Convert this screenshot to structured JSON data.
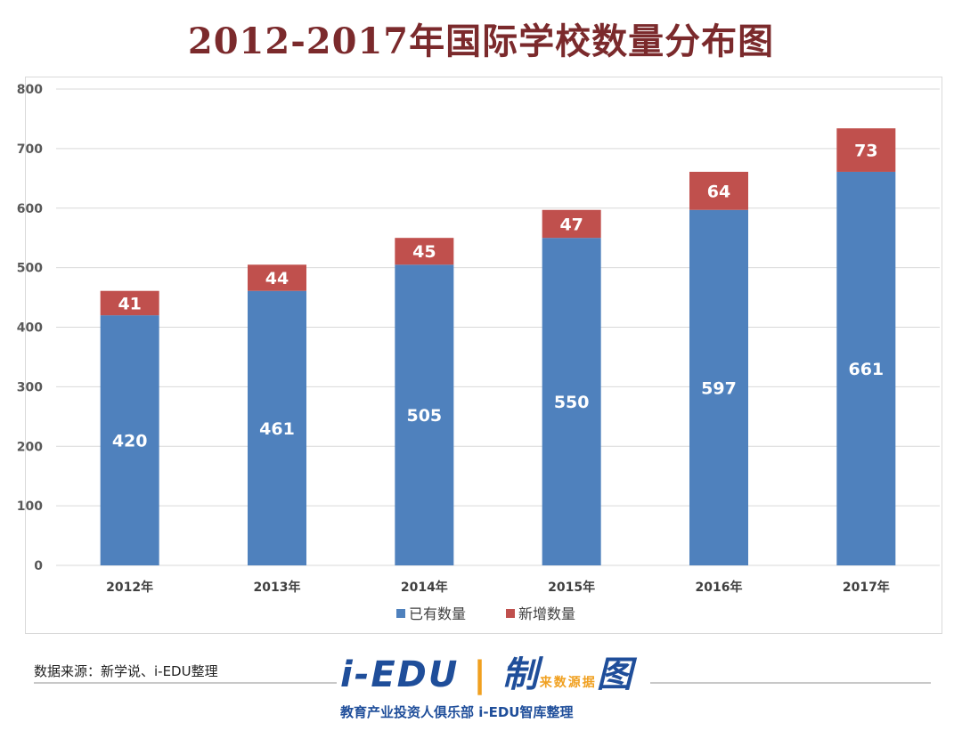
{
  "chart_data": {
    "type": "bar",
    "stacked": true,
    "title": "2012-2017年国际学校数量分布图",
    "categories": [
      "2012年",
      "2013年",
      "2014年",
      "2015年",
      "2016年",
      "2017年"
    ],
    "series": [
      {
        "name": "已有数量",
        "color": "#4f81bd",
        "values": [
          420,
          461,
          505,
          550,
          597,
          661
        ]
      },
      {
        "name": "新增数量",
        "color": "#c0504d",
        "values": [
          41,
          44,
          45,
          47,
          64,
          73
        ]
      }
    ],
    "ylim": [
      0,
      800
    ],
    "yticks": [
      0,
      100,
      200,
      300,
      400,
      500,
      600,
      700,
      800
    ],
    "grid": true,
    "legend": "bottom"
  },
  "footer": {
    "source": "数据来源：新学说、i-EDU整理",
    "logo_main": "i-EDU",
    "logo_zhi": "制",
    "logo_side": "来数源据",
    "logo_tu": "图",
    "logo_sub": "教育产业投资人俱乐部  i-EDU智库整理"
  }
}
